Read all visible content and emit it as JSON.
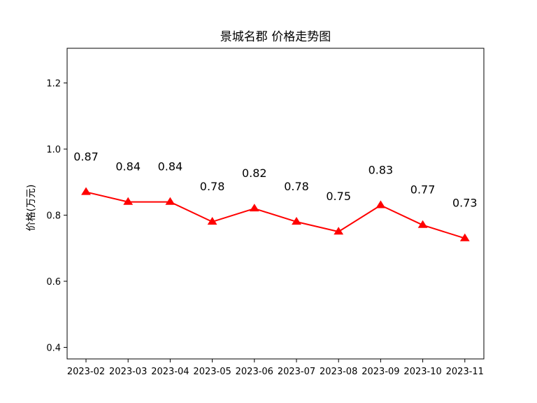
{
  "chart_data": {
    "type": "line",
    "title": "景城名郡 价格走势图",
    "xlabel": "",
    "ylabel": "价格(万元)",
    "categories": [
      "2023-02",
      "2023-03",
      "2023-04",
      "2023-05",
      "2023-06",
      "2023-07",
      "2023-08",
      "2023-09",
      "2023-10",
      "2023-11"
    ],
    "series": [
      {
        "values": [
          0.87,
          0.84,
          0.84,
          0.78,
          0.82,
          0.78,
          0.75,
          0.83,
          0.77,
          0.73
        ],
        "labels": [
          "0.87",
          "0.84",
          "0.84",
          "0.78",
          "0.82",
          "0.78",
          "0.75",
          "0.83",
          "0.77",
          "0.73"
        ],
        "color": "#ff0000",
        "marker": "triangle-up"
      }
    ],
    "ylim": [
      0.365,
      1.305
    ],
    "yticks": [
      0.4,
      0.6,
      0.8,
      1.0,
      1.2
    ],
    "ytick_labels": [
      "0.4",
      "0.6",
      "0.8",
      "1.0",
      "1.2"
    ],
    "grid": false,
    "legend": "none"
  }
}
